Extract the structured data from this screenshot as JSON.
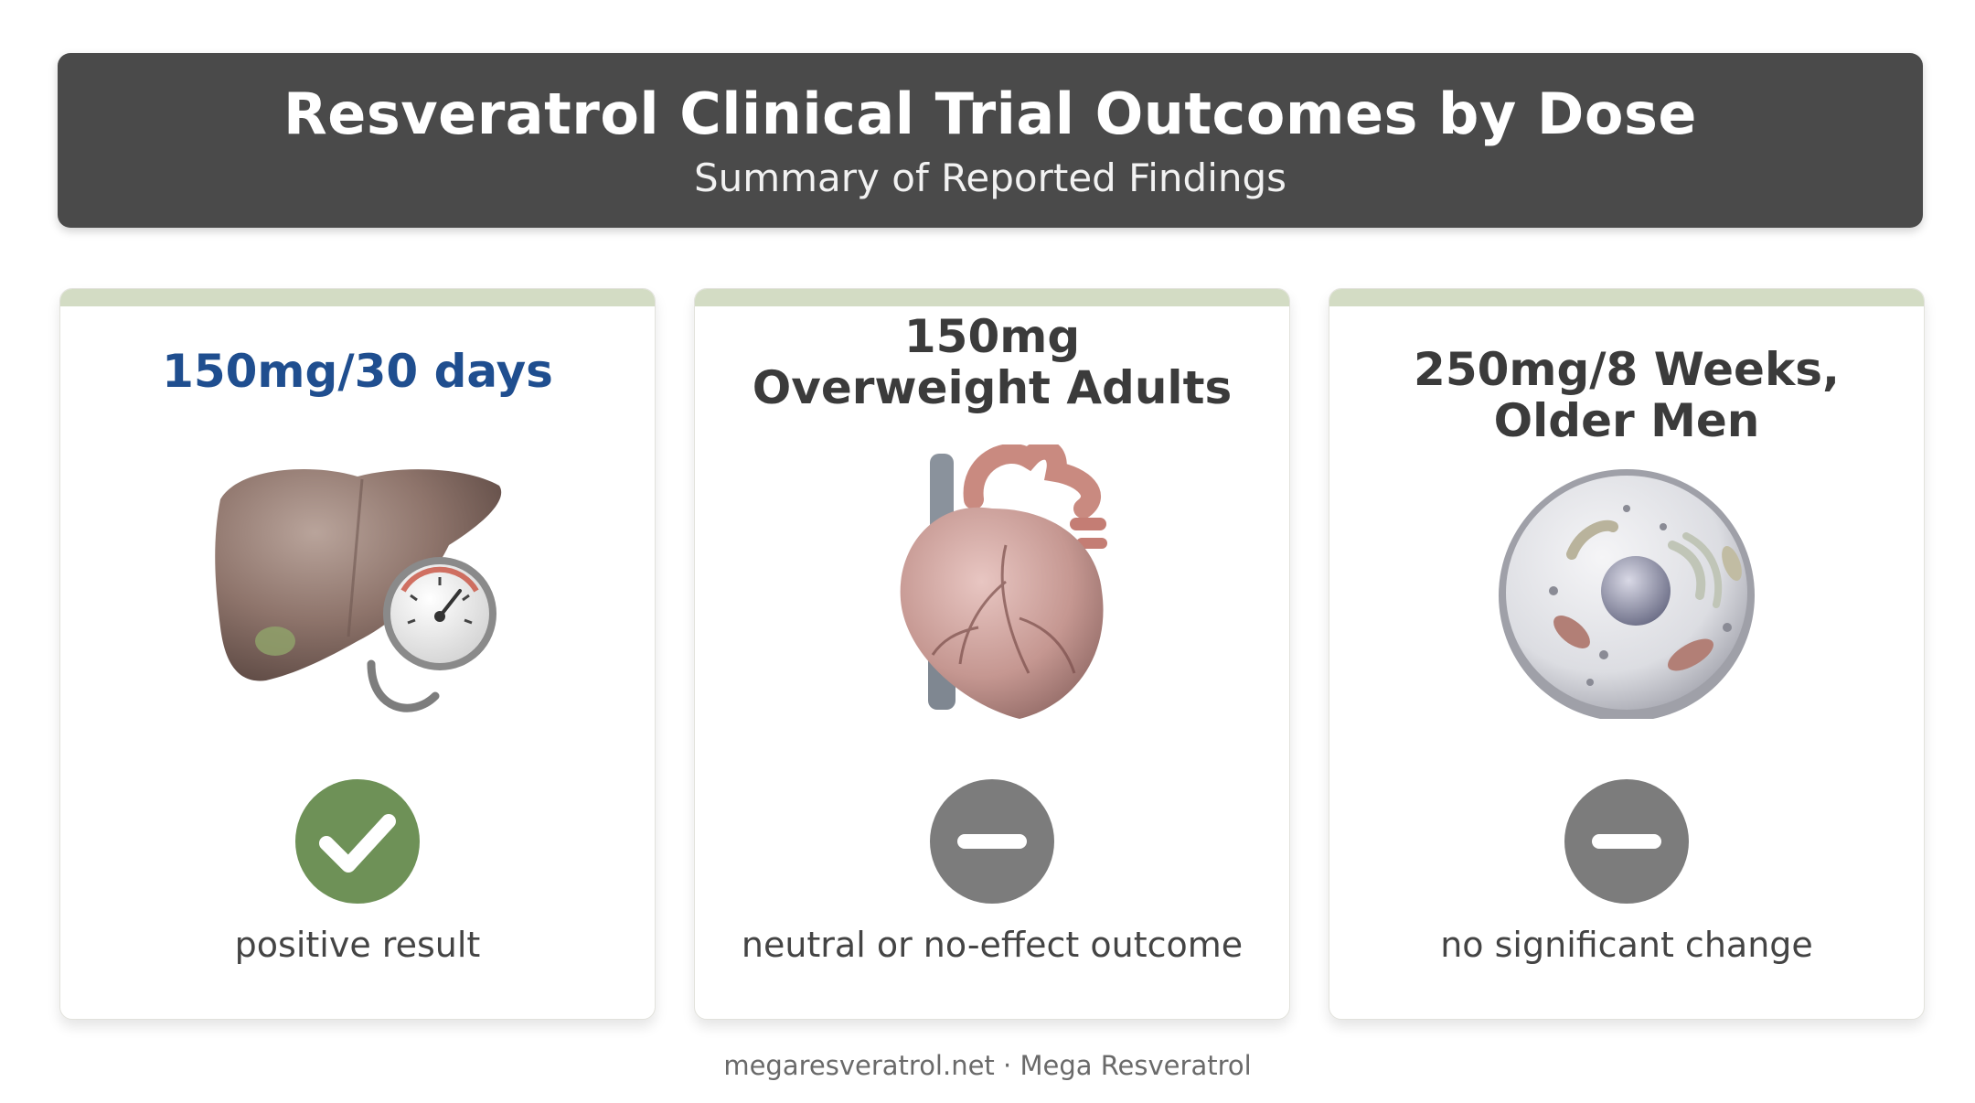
{
  "header": {
    "title": "Resveratrol Clinical Trial Outcomes by Dose",
    "subtitle": "Summary of Reported Findings"
  },
  "cards": [
    {
      "title": "150mg/30 days",
      "illustration": "liver-with-blood-pressure-gauge",
      "status_icon": "check-icon",
      "status_color": "#6e9157",
      "outcome": "positive result"
    },
    {
      "title": "150mg\nOverweight Adults",
      "illustration": "anatomical-heart",
      "status_icon": "minus-icon",
      "status_color": "#7c7c7c",
      "outcome": "neutral or no-effect outcome"
    },
    {
      "title": "250mg/8 Weeks,\nOlder Men",
      "illustration": "cell",
      "status_icon": "minus-icon",
      "status_color": "#7c7c7c",
      "outcome": "no significant change"
    }
  ],
  "colors": {
    "header_bg": "#4a4a4a",
    "card_strip": "#d3dcc4",
    "highlight_title": "#1f4e8f"
  },
  "footer": {
    "text": "megaresveratrol.net · Mega Resveratrol"
  }
}
